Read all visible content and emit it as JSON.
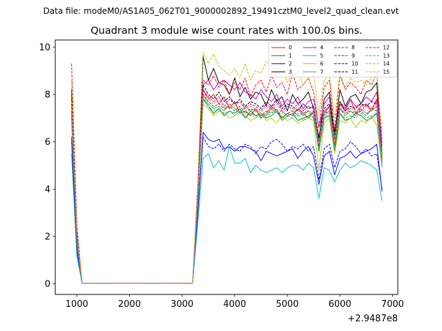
{
  "chart_data": {
    "type": "line",
    "suptitle": "Data file: modeM0/AS1A05_062T01_9000002892_19491cztM0_level2_quad_clean.evt",
    "title": "Quadrant 3 module wise count rates with 100.0s bins.",
    "xlabel": "",
    "ylabel": "",
    "x_offset_label": "+2.9487e8",
    "xlim": [
      590,
      7100
    ],
    "ylim": [
      -0.45,
      10.3
    ],
    "x_ticks": [
      1000,
      2000,
      3000,
      4000,
      5000,
      6000,
      7000
    ],
    "x_tick_labels": [
      "1000",
      "2000",
      "3000",
      "4000",
      "5000",
      "6000",
      "7000"
    ],
    "y_ticks": [
      0,
      2,
      4,
      6,
      8,
      10
    ],
    "y_tick_labels": [
      "0",
      "2",
      "4",
      "6",
      "8",
      "10"
    ],
    "grid": false,
    "legend_placement": "top-right",
    "legend_columns": 4,
    "x": [
      900,
      1000,
      1100,
      1200,
      1300,
      1400,
      1500,
      1600,
      1700,
      1800,
      1900,
      2000,
      2100,
      2200,
      2300,
      2400,
      2500,
      2600,
      2700,
      2800,
      2900,
      3000,
      3100,
      3200,
      3300,
      3400,
      3500,
      3600,
      3700,
      3800,
      3900,
      4000,
      4100,
      4200,
      4300,
      4400,
      4500,
      4600,
      4700,
      4800,
      4900,
      5000,
      5100,
      5200,
      5300,
      5400,
      5500,
      5600,
      5700,
      5800,
      5900,
      6000,
      6100,
      6200,
      6300,
      6400,
      6500,
      6600,
      6700,
      6800
    ],
    "series": [
      {
        "name": "0",
        "color": "#ff0000",
        "dash": "solid",
        "values": [
          8.0,
          2.2,
          0.02,
          0.02,
          0.02,
          0.02,
          0.02,
          0.02,
          0.02,
          0.02,
          0.02,
          0.02,
          0.02,
          0.02,
          0.02,
          0.02,
          0.02,
          0.02,
          0.02,
          0.02,
          0.02,
          0.02,
          0.02,
          0.02,
          3.8,
          8.2,
          7.8,
          8.0,
          7.6,
          7.9,
          7.4,
          7.7,
          7.2,
          7.3,
          7.1,
          7.4,
          7.0,
          7.2,
          7.5,
          7.3,
          7.0,
          7.2,
          7.1,
          7.4,
          7.2,
          7.0,
          7.3,
          5.8,
          7.2,
          7.5,
          5.8,
          7.6,
          7.3,
          7.8,
          7.2,
          7.5,
          7.6,
          7.3,
          7.8,
          5.2
        ]
      },
      {
        "name": "1",
        "color": "#008000",
        "dash": "solid",
        "values": [
          7.0,
          1.8,
          0.02,
          0.02,
          0.02,
          0.02,
          0.02,
          0.02,
          0.02,
          0.02,
          0.02,
          0.02,
          0.02,
          0.02,
          0.02,
          0.02,
          0.02,
          0.02,
          0.02,
          0.02,
          0.02,
          0.02,
          0.02,
          0.02,
          3.5,
          7.8,
          7.5,
          7.2,
          7.4,
          7.1,
          7.3,
          7.2,
          7.4,
          7.0,
          7.3,
          7.1,
          7.2,
          7.0,
          7.1,
          7.3,
          6.9,
          7.1,
          7.2,
          6.9,
          7.0,
          7.1,
          7.2,
          5.6,
          7.0,
          7.1,
          5.6,
          7.2,
          6.9,
          7.0,
          7.2,
          7.1,
          6.9,
          7.0,
          7.2,
          5.0
        ]
      },
      {
        "name": "2",
        "color": "#0000ff",
        "dash": "solid",
        "values": [
          6.2,
          1.4,
          0.02,
          0.02,
          0.02,
          0.02,
          0.02,
          0.02,
          0.02,
          0.02,
          0.02,
          0.02,
          0.02,
          0.02,
          0.02,
          0.02,
          0.02,
          0.02,
          0.02,
          0.02,
          0.02,
          0.02,
          0.02,
          0.02,
          3.0,
          6.4,
          6.1,
          6.0,
          6.1,
          5.7,
          5.8,
          5.6,
          5.8,
          5.8,
          5.7,
          5.6,
          5.2,
          5.6,
          5.5,
          5.4,
          5.5,
          5.6,
          5.7,
          5.3,
          5.6,
          5.8,
          5.4,
          4.2,
          5.4,
          5.6,
          4.6,
          5.3,
          5.4,
          5.6,
          5.3,
          5.5,
          5.6,
          5.7,
          5.9,
          3.9
        ]
      },
      {
        "name": "3",
        "color": "#000000",
        "dash": "solid",
        "values": [
          8.2,
          2.3,
          0.02,
          0.02,
          0.02,
          0.02,
          0.02,
          0.02,
          0.02,
          0.02,
          0.02,
          0.02,
          0.02,
          0.02,
          0.02,
          0.02,
          0.02,
          0.02,
          0.02,
          0.02,
          0.02,
          0.02,
          0.02,
          0.02,
          4.0,
          9.6,
          8.6,
          9.1,
          8.5,
          8.4,
          8.0,
          8.7,
          7.9,
          8.3,
          7.8,
          8.1,
          8.0,
          7.5,
          8.2,
          7.7,
          7.9,
          7.3,
          8.0,
          7.6,
          7.8,
          8.1,
          7.4,
          6.1,
          7.8,
          8.1,
          6.2,
          8.2,
          7.5,
          7.9,
          8.0,
          7.6,
          8.1,
          8.2,
          8.5,
          5.4
        ]
      },
      {
        "name": "4",
        "color": "#c000c0",
        "dash": "solid",
        "values": [
          7.6,
          2.0,
          0.02,
          0.02,
          0.02,
          0.02,
          0.02,
          0.02,
          0.02,
          0.02,
          0.02,
          0.02,
          0.02,
          0.02,
          0.02,
          0.02,
          0.02,
          0.02,
          0.02,
          0.02,
          0.02,
          0.02,
          0.02,
          0.02,
          3.9,
          8.4,
          8.6,
          8.2,
          8.5,
          8.6,
          8.4,
          8.2,
          8.5,
          8.1,
          8.0,
          7.8,
          8.2,
          7.9,
          7.7,
          8.0,
          7.5,
          7.8,
          7.6,
          7.9,
          7.4,
          7.7,
          7.8,
          6.6,
          7.6,
          7.9,
          6.0,
          7.7,
          7.4,
          7.8,
          7.5,
          7.6,
          7.9,
          7.7,
          8.1,
          5.8
        ]
      },
      {
        "name": "5",
        "color": "#00bfbf",
        "dash": "solid",
        "values": [
          5.5,
          1.2,
          0.02,
          0.02,
          0.02,
          0.02,
          0.02,
          0.02,
          0.02,
          0.02,
          0.02,
          0.02,
          0.02,
          0.02,
          0.02,
          0.02,
          0.02,
          0.02,
          0.02,
          0.02,
          0.02,
          0.02,
          0.02,
          0.02,
          2.6,
          5.3,
          5.5,
          4.9,
          5.2,
          4.8,
          5.8,
          5.1,
          5.1,
          5.3,
          4.7,
          5.0,
          4.8,
          4.7,
          4.8,
          4.9,
          4.7,
          4.9,
          5.0,
          5.0,
          4.8,
          5.1,
          4.9,
          3.6,
          4.9,
          4.8,
          4.3,
          4.8,
          5.1,
          4.9,
          5.0,
          5.2,
          5.1,
          5.0,
          4.8,
          3.5
        ]
      },
      {
        "name": "6",
        "color": "#bfbf00",
        "dash": "solid",
        "values": [
          6.8,
          1.7,
          0.02,
          0.02,
          0.02,
          0.02,
          0.02,
          0.02,
          0.02,
          0.02,
          0.02,
          0.02,
          0.02,
          0.02,
          0.02,
          0.02,
          0.02,
          0.02,
          0.02,
          0.02,
          0.02,
          0.02,
          0.02,
          0.02,
          3.4,
          7.6,
          7.4,
          7.1,
          7.3,
          7.2,
          7.0,
          7.1,
          7.3,
          7.1,
          6.9,
          7.0,
          7.2,
          6.9,
          7.0,
          6.8,
          7.1,
          6.9,
          7.0,
          6.8,
          6.9,
          7.0,
          6.9,
          4.8,
          6.8,
          7.0,
          5.5,
          6.9,
          6.8,
          7.0,
          6.6,
          6.9,
          6.8,
          7.1,
          6.7,
          4.9
        ]
      },
      {
        "name": "7",
        "color": "#808080",
        "dash": "solid",
        "values": [
          7.2,
          1.9,
          0.02,
          0.02,
          0.02,
          0.02,
          0.02,
          0.02,
          0.02,
          0.02,
          0.02,
          0.02,
          0.02,
          0.02,
          0.02,
          0.02,
          0.02,
          0.02,
          0.02,
          0.02,
          0.02,
          0.02,
          0.02,
          0.02,
          3.6,
          8.0,
          7.6,
          7.4,
          7.5,
          7.3,
          7.6,
          7.4,
          7.2,
          7.5,
          7.3,
          7.4,
          7.2,
          7.1,
          7.4,
          7.2,
          7.3,
          7.1,
          7.2,
          7.4,
          7.1,
          7.3,
          7.2,
          5.9,
          7.1,
          7.3,
          6.2,
          7.4,
          7.2,
          7.3,
          7.1,
          7.4,
          7.2,
          7.3,
          7.5,
          5.3
        ]
      },
      {
        "name": "8",
        "color": "#ff0000",
        "dash": "dashed",
        "values": [
          9.3,
          2.5,
          0.02,
          0.02,
          0.02,
          0.02,
          0.02,
          0.02,
          0.02,
          0.02,
          0.02,
          0.02,
          0.02,
          0.02,
          0.02,
          0.02,
          0.02,
          0.02,
          0.02,
          0.02,
          0.02,
          0.02,
          0.02,
          0.02,
          4.2,
          8.6,
          8.4,
          8.8,
          8.3,
          8.6,
          8.0,
          8.5,
          8.2,
          8.7,
          7.9,
          8.4,
          8.6,
          8.1,
          8.8,
          8.3,
          8.5,
          8.0,
          8.9,
          8.2,
          8.4,
          8.7,
          8.1,
          6.6,
          8.3,
          8.6,
          6.5,
          8.8,
          8.2,
          8.5,
          8.3,
          8.0,
          8.6,
          8.4,
          8.9,
          6.0
        ]
      },
      {
        "name": "9",
        "color": "#008000",
        "dash": "dashed",
        "values": [
          7.3,
          1.9,
          0.02,
          0.02,
          0.02,
          0.02,
          0.02,
          0.02,
          0.02,
          0.02,
          0.02,
          0.02,
          0.02,
          0.02,
          0.02,
          0.02,
          0.02,
          0.02,
          0.02,
          0.02,
          0.02,
          0.02,
          0.02,
          0.02,
          3.7,
          8.0,
          7.7,
          7.5,
          7.6,
          7.4,
          7.5,
          7.3,
          7.5,
          7.2,
          7.4,
          7.3,
          7.1,
          7.3,
          7.2,
          7.4,
          7.0,
          7.2,
          7.3,
          7.1,
          7.2,
          7.3,
          7.0,
          5.9,
          7.2,
          7.3,
          5.9,
          7.4,
          7.1,
          7.3,
          7.2,
          7.3,
          7.1,
          7.4,
          7.3,
          5.3
        ]
      },
      {
        "name": "10",
        "color": "#0000ff",
        "dash": "dashed",
        "values": [
          6.0,
          1.5,
          0.02,
          0.02,
          0.02,
          0.02,
          0.02,
          0.02,
          0.02,
          0.02,
          0.02,
          0.02,
          0.02,
          0.02,
          0.02,
          0.02,
          0.02,
          0.02,
          0.02,
          0.02,
          0.02,
          0.02,
          0.02,
          0.02,
          3.1,
          6.2,
          5.8,
          5.7,
          5.9,
          5.6,
          5.9,
          5.7,
          5.6,
          5.9,
          5.8,
          5.5,
          5.8,
          5.7,
          6.0,
          6.1,
          5.9,
          5.6,
          5.8,
          5.7,
          5.9,
          5.6,
          5.8,
          4.4,
          5.7,
          5.9,
          4.9,
          5.6,
          5.7,
          6.0,
          5.8,
          5.5,
          5.7,
          5.4,
          5.5,
          4.0
        ]
      },
      {
        "name": "11",
        "color": "#000000",
        "dash": "dashed",
        "values": [
          7.8,
          2.1,
          0.02,
          0.02,
          0.02,
          0.02,
          0.02,
          0.02,
          0.02,
          0.02,
          0.02,
          0.02,
          0.02,
          0.02,
          0.02,
          0.02,
          0.02,
          0.02,
          0.02,
          0.02,
          0.02,
          0.02,
          0.02,
          0.02,
          3.9,
          8.4,
          8.0,
          7.8,
          8.1,
          7.7,
          7.9,
          7.6,
          7.8,
          7.5,
          7.7,
          7.6,
          7.4,
          7.7,
          7.5,
          7.8,
          7.4,
          7.6,
          7.5,
          7.3,
          7.6,
          7.4,
          7.5,
          6.2,
          7.4,
          7.6,
          6.4,
          7.7,
          7.3,
          7.5,
          7.4,
          7.6,
          7.5,
          7.7,
          7.6,
          5.6
        ]
      },
      {
        "name": "12",
        "color": "#c000c0",
        "dash": "dashed",
        "values": [
          7.5,
          2.0,
          0.02,
          0.02,
          0.02,
          0.02,
          0.02,
          0.02,
          0.02,
          0.02,
          0.02,
          0.02,
          0.02,
          0.02,
          0.02,
          0.02,
          0.02,
          0.02,
          0.02,
          0.02,
          0.02,
          0.02,
          0.02,
          0.02,
          3.8,
          8.2,
          7.9,
          7.7,
          7.9,
          7.5,
          7.8,
          7.6,
          7.7,
          7.4,
          7.6,
          7.5,
          7.3,
          7.6,
          7.4,
          7.7,
          7.3,
          7.5,
          7.4,
          7.6,
          7.3,
          7.5,
          7.4,
          6.0,
          7.3,
          7.5,
          6.1,
          7.6,
          7.3,
          7.4,
          7.5,
          7.3,
          7.6,
          7.4,
          7.7,
          5.5
        ]
      },
      {
        "name": "13",
        "color": "#00bfbf",
        "dash": "dashed",
        "values": [
          7.1,
          1.8,
          0.02,
          0.02,
          0.02,
          0.02,
          0.02,
          0.02,
          0.02,
          0.02,
          0.02,
          0.02,
          0.02,
          0.02,
          0.02,
          0.02,
          0.02,
          0.02,
          0.02,
          0.02,
          0.02,
          0.02,
          0.02,
          0.02,
          3.5,
          7.9,
          7.5,
          7.3,
          7.4,
          7.2,
          7.3,
          7.1,
          7.3,
          7.0,
          7.2,
          7.1,
          7.0,
          7.2,
          7.1,
          7.3,
          6.9,
          7.1,
          7.0,
          7.2,
          6.9,
          7.1,
          7.0,
          5.7,
          7.0,
          7.2,
          5.8,
          7.2,
          7.0,
          7.1,
          7.0,
          7.2,
          7.0,
          7.1,
          7.2,
          5.1
        ]
      },
      {
        "name": "14",
        "color": "#bfbf00",
        "dash": "dashed",
        "values": [
          8.6,
          2.4,
          0.02,
          0.02,
          0.02,
          0.02,
          0.02,
          0.02,
          0.02,
          0.02,
          0.02,
          0.02,
          0.02,
          0.02,
          0.02,
          0.02,
          0.02,
          0.02,
          0.02,
          0.02,
          0.02,
          0.02,
          0.02,
          0.02,
          4.4,
          9.8,
          9.3,
          9.7,
          9.2,
          9.0,
          8.8,
          9.1,
          8.7,
          9.3,
          8.6,
          9.0,
          8.9,
          9.4,
          9.2,
          8.8,
          9.3,
          8.5,
          8.9,
          9.0,
          8.4,
          8.7,
          8.8,
          7.2,
          8.6,
          8.8,
          7.0,
          8.9,
          8.3,
          8.7,
          8.5,
          8.6,
          8.4,
          8.7,
          8.8,
          6.4
        ]
      },
      {
        "name": "15",
        "color": "#ff8080",
        "dash": "dashed",
        "values": [
          7.7,
          2.0,
          0.02,
          0.02,
          0.02,
          0.02,
          0.02,
          0.02,
          0.02,
          0.02,
          0.02,
          0.02,
          0.02,
          0.02,
          0.02,
          0.02,
          0.02,
          0.02,
          0.02,
          0.02,
          0.02,
          0.02,
          0.02,
          0.02,
          3.8,
          8.1,
          7.8,
          7.6,
          7.8,
          7.4,
          7.6,
          7.5,
          7.7,
          7.3,
          7.5,
          7.4,
          7.2,
          7.5,
          7.3,
          7.6,
          7.2,
          7.4,
          7.3,
          7.5,
          7.2,
          7.4,
          7.3,
          5.9,
          7.3,
          7.4,
          6.0,
          7.5,
          7.2,
          7.4,
          7.3,
          7.2,
          7.5,
          7.3,
          7.6,
          5.4
        ]
      }
    ]
  }
}
